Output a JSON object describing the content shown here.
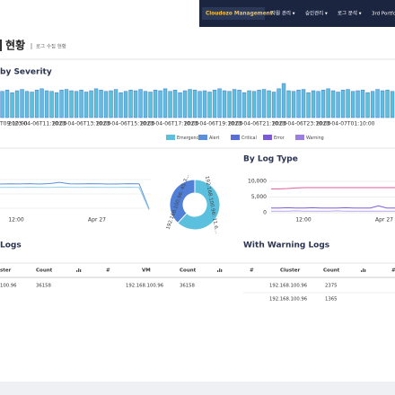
{
  "nav": {
    "brand": "Cloudozo Management",
    "items": [
      "자원 관리 ▾",
      "승인관리 ▾",
      "로그 분석 ▾",
      "3rd Portfo"
    ]
  },
  "header": {
    "title": "현황",
    "subtitle": "로그 수집 현황"
  },
  "severity": {
    "type": "bar",
    "title": "by Severity",
    "color": "#5bc0de",
    "edge": "#4a78c8",
    "values": [
      40,
      42,
      38,
      41,
      43,
      40,
      39,
      42,
      44,
      41,
      40,
      38,
      42,
      43,
      41,
      40,
      42,
      39,
      41,
      44,
      42,
      40,
      41,
      43,
      38,
      40,
      42,
      41,
      43,
      40,
      39,
      42,
      41,
      44,
      40,
      42,
      38,
      41,
      43,
      42,
      40,
      41,
      39,
      42,
      44,
      41,
      40,
      43,
      42,
      38,
      41,
      40,
      42,
      43,
      41,
      39,
      44,
      52,
      41,
      40,
      42,
      43,
      38,
      41,
      40,
      42,
      44,
      41,
      39,
      42,
      43,
      40,
      41,
      42,
      38,
      40,
      43,
      41,
      42,
      40
    ],
    "x_labels": [
      "T09:10:00",
      "2023-04-06T11:10:00",
      "2023-04-06T13:10:00",
      "2023-04-06T15:10:00",
      "2023-04-06T17:10:00",
      "2023-04-06T19:10:00",
      "2023-04-06T21:10:00",
      "2023-04-06T23:10:00",
      "2023-04-07T01:10:00"
    ],
    "legend": [
      {
        "name": "Emergency",
        "color": "#5bc0de"
      },
      {
        "name": "Alert",
        "color": "#5b8fd9"
      },
      {
        "name": "Critical",
        "color": "#5a6fd6"
      },
      {
        "name": "Error",
        "color": "#7b5cd6"
      },
      {
        "name": "Warning",
        "color": "#9b7fe0"
      }
    ]
  },
  "left_chart": {
    "type": "line",
    "ylim": [
      0,
      40000
    ],
    "x_labels": [
      "12:00",
      "Apr 27"
    ],
    "series": [
      {
        "color": "#5b8fd9",
        "values": [
          28000,
          28200,
          28100,
          28300,
          28000,
          28400,
          29500,
          28200,
          28100,
          28300,
          28200,
          28000,
          28100,
          28300,
          28200,
          6000
        ]
      },
      {
        "color": "#9ad0e8",
        "values": [
          25000,
          25100,
          25000,
          25200,
          25100,
          25000,
          25300,
          25100,
          25000,
          25200,
          25100,
          25000,
          25100,
          25200,
          25000,
          5000
        ]
      }
    ]
  },
  "donut": {
    "type": "pie",
    "values": [
      62,
      38
    ],
    "colors": [
      "#5bc0de",
      "#4f7fd6"
    ],
    "labels": [
      "192.168.100.96: 11.6...",
      "192.168.100.96: 45.3..."
    ]
  },
  "log_type": {
    "type": "line",
    "title": "By Log Type",
    "ylim": [
      0,
      12000
    ],
    "yticks": [
      {
        "value": 10000,
        "label": "10,000"
      },
      {
        "value": 5000,
        "label": "5,000"
      },
      0
    ],
    "x_labels": [
      "12:00",
      "Apr 27"
    ],
    "series": [
      {
        "color": "#e05a9a",
        "values": [
          7600,
          7600,
          7700,
          7900,
          8000,
          8000,
          8000,
          8000,
          8000,
          8000,
          8000,
          8000,
          8000,
          8000,
          8000,
          8000
        ]
      },
      {
        "color": "#7b5cd6",
        "values": [
          1500,
          1500,
          1600,
          1500,
          1500,
          1600,
          1500,
          1500,
          1500,
          1600,
          1500,
          1500,
          1500,
          2200,
          1500,
          1500
        ]
      },
      {
        "color": "#b9a6ee",
        "values": [
          500,
          500,
          500,
          600,
          500,
          500,
          500,
          500,
          600,
          500,
          500,
          500,
          500,
          500,
          500,
          500
        ]
      }
    ]
  },
  "logs": {
    "title": "Logs",
    "cluster_columns": [
      "ster",
      "Count"
    ],
    "cluster_rows": [
      [
        "100.96",
        "36158"
      ]
    ],
    "vm_columns": [
      "#",
      "VM",
      "Count"
    ],
    "vm_rows": [
      [
        "192.168.100.96",
        "36158"
      ]
    ]
  },
  "warning": {
    "title": "With Warning Logs",
    "columns": [
      "#",
      "Cluster",
      "Count",
      "#"
    ],
    "rows": [
      [
        "192.168.100.96",
        "2375"
      ],
      [
        "192.168.100.96",
        "1365"
      ]
    ]
  }
}
